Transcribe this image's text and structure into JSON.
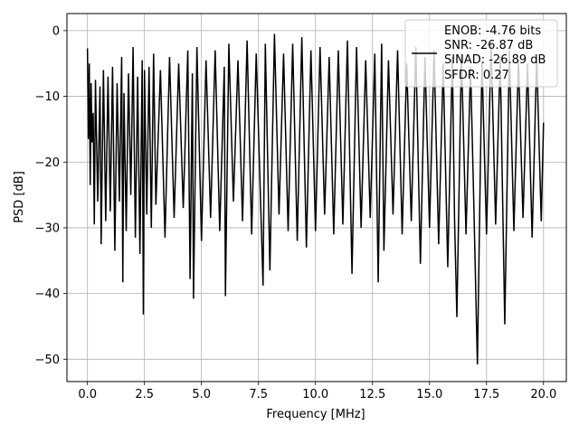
{
  "chart_data": {
    "type": "line",
    "title": "",
    "xlabel": "Frequency [MHz]",
    "ylabel": "PSD [dB]",
    "xlim": [
      -0.9,
      21.0
    ],
    "ylim": [
      -53.4,
      2.6
    ],
    "xticks": [
      0.0,
      2.5,
      5.0,
      7.5,
      10.0,
      12.5,
      15.0,
      17.5,
      20.0
    ],
    "xtick_labels": [
      "0.0",
      "2.5",
      "5.0",
      "7.5",
      "10.0",
      "12.5",
      "15.0",
      "17.5",
      "20.0"
    ],
    "yticks": [
      0,
      -10,
      -20,
      -30,
      -40,
      -50
    ],
    "ytick_labels": [
      "0",
      "−10",
      "−20",
      "−30",
      "−40",
      "−50"
    ],
    "grid": true,
    "legend_position": "top-right",
    "series_color": "#000000",
    "legend_lines": [
      "ENOB: -4.76 bits",
      "SNR: -26.87 dB",
      "SINAD: -26.89 dB",
      "SFDR: 0.27"
    ],
    "series": [
      {
        "x": [
          0.0,
          0.04,
          0.08,
          0.12,
          0.16,
          0.2,
          0.25,
          0.3,
          0.35,
          0.45,
          0.55,
          0.6,
          0.7,
          0.8,
          0.9,
          1.0,
          1.1,
          1.2,
          1.3,
          1.4,
          1.5,
          1.55,
          1.6,
          1.7,
          1.8,
          1.9,
          2.0,
          2.1,
          2.2,
          2.3,
          2.4,
          2.45,
          2.5,
          2.6,
          2.7,
          2.8,
          2.9,
          3.0,
          3.2,
          3.4,
          3.6,
          3.8,
          4.0,
          4.2,
          4.4,
          4.5,
          4.6,
          4.65,
          4.8,
          5.0,
          5.2,
          5.4,
          5.6,
          5.8,
          6.0,
          6.05,
          6.2,
          6.4,
          6.6,
          6.8,
          7.0,
          7.2,
          7.4,
          7.6,
          7.7,
          7.8,
          8.0,
          8.2,
          8.4,
          8.6,
          8.8,
          9.0,
          9.2,
          9.4,
          9.6,
          9.8,
          10.0,
          10.2,
          10.4,
          10.6,
          10.8,
          11.0,
          11.2,
          11.4,
          11.6,
          11.8,
          12.0,
          12.2,
          12.4,
          12.6,
          12.75,
          12.9,
          13.0,
          13.2,
          13.4,
          13.6,
          13.8,
          14.0,
          14.2,
          14.4,
          14.6,
          14.8,
          15.0,
          15.2,
          15.4,
          15.6,
          15.8,
          16.0,
          16.1,
          16.2,
          16.4,
          16.6,
          16.8,
          16.95,
          17.1,
          17.3,
          17.5,
          17.7,
          17.9,
          18.1,
          18.3,
          18.5,
          18.7,
          18.9,
          19.1,
          19.3,
          19.5,
          19.7,
          19.9,
          20.0
        ],
        "y": [
          -2.7,
          -16.5,
          -5.0,
          -23.5,
          -8.0,
          -17.0,
          -12.5,
          -29.5,
          -7.5,
          -26.0,
          -8.5,
          -32.5,
          -6.0,
          -29.0,
          -7.0,
          -27.5,
          -5.5,
          -33.5,
          -8.0,
          -26.0,
          -4.0,
          -38.3,
          -9.5,
          -30.5,
          -6.5,
          -25.0,
          -2.5,
          -31.5,
          -7.0,
          -34.0,
          -4.5,
          -43.2,
          -6.0,
          -28.0,
          -5.5,
          -30.0,
          -3.5,
          -26.5,
          -6.0,
          -31.5,
          -4.0,
          -28.5,
          -5.0,
          -27.0,
          -3.0,
          -37.8,
          -6.5,
          -40.8,
          -2.5,
          -32.0,
          -4.5,
          -28.5,
          -3.0,
          -30.5,
          -5.5,
          -40.4,
          -2.0,
          -26.0,
          -4.5,
          -29.0,
          -1.5,
          -31.0,
          -3.5,
          -27.0,
          -38.8,
          -2.0,
          -36.5,
          -0.5,
          -28.0,
          -3.5,
          -30.5,
          -2.0,
          -32.0,
          -1.0,
          -33.0,
          -3.0,
          -30.5,
          -2.5,
          -28.0,
          -4.0,
          -31.0,
          -3.0,
          -29.5,
          -1.5,
          -37.0,
          -2.5,
          -30.0,
          -4.5,
          -28.5,
          -3.5,
          -38.3,
          -2.0,
          -33.5,
          -4.5,
          -28.0,
          -3.0,
          -31.0,
          -5.0,
          -29.0,
          -2.5,
          -35.5,
          -4.0,
          -30.0,
          -3.0,
          -32.5,
          -5.0,
          -36.0,
          -4.0,
          -29.0,
          -43.6,
          -3.5,
          -31.0,
          -5.5,
          -27.5,
          -50.8,
          -4.5,
          -31.0,
          -2.0,
          -29.5,
          -4.0,
          -44.7,
          -3.0,
          -30.5,
          -4.5,
          -28.5,
          -5.0,
          -31.5,
          -4.0,
          -29.0,
          -14.0
        ]
      }
    ]
  }
}
